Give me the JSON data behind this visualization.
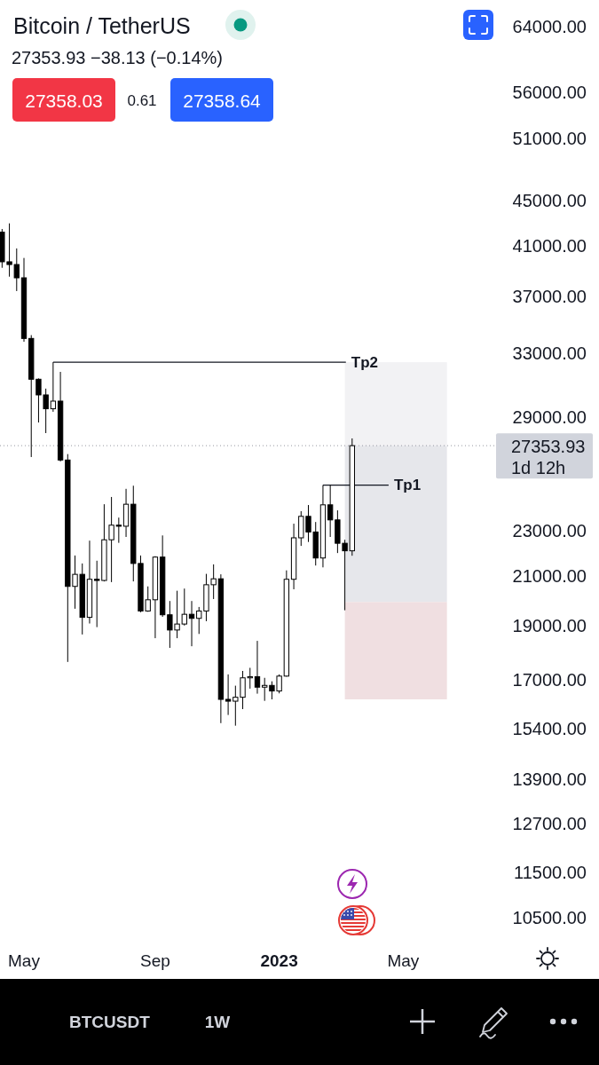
{
  "chart_data": {
    "type": "candlestick",
    "title": "Bitcoin / TetherUS",
    "subtitle": "27353.93 −38.13 (−0.14%)",
    "x": [
      "2022-04-11",
      "2022-04-18",
      "2022-04-25",
      "2022-05-02",
      "2022-05-09",
      "2022-05-16",
      "2022-05-23",
      "2022-05-30",
      "2022-06-06",
      "2022-06-13",
      "2022-06-20",
      "2022-06-27",
      "2022-07-04",
      "2022-07-11",
      "2022-07-18",
      "2022-07-25",
      "2022-08-01",
      "2022-08-08",
      "2022-08-15",
      "2022-08-22",
      "2022-08-29",
      "2022-09-05",
      "2022-09-12",
      "2022-09-19",
      "2022-09-26",
      "2022-10-03",
      "2022-10-10",
      "2022-10-17",
      "2022-10-24",
      "2022-10-31",
      "2022-11-07",
      "2022-11-14",
      "2022-11-21",
      "2022-11-28",
      "2022-12-05",
      "2022-12-12",
      "2022-12-19",
      "2022-12-26",
      "2023-01-02",
      "2023-01-09",
      "2023-01-16",
      "2023-01-23",
      "2023-01-30",
      "2023-02-06",
      "2023-02-13",
      "2023-02-20",
      "2023-02-27",
      "2023-03-06",
      "2023-03-13"
    ],
    "ohlc": [
      [
        42180,
        42450,
        39240,
        39720
      ],
      [
        39720,
        42940,
        38540,
        39500
      ],
      [
        39500,
        40810,
        37430,
        38450
      ],
      [
        38450,
        40030,
        33770,
        34000
      ],
      [
        34000,
        34230,
        26730,
        31300
      ],
      [
        31300,
        31350,
        28670,
        30320
      ],
      [
        30320,
        30710,
        28060,
        29480
      ],
      [
        29480,
        32400,
        29300,
        29940
      ],
      [
        29940,
        31770,
        26490,
        26570
      ],
      [
        26570,
        26890,
        17640,
        20560
      ],
      [
        20560,
        21890,
        19650,
        21070
      ],
      [
        21070,
        21540,
        18650,
        19310
      ],
      [
        19310,
        22560,
        19070,
        20860
      ],
      [
        20860,
        21660,
        18930,
        20810
      ],
      [
        20810,
        24290,
        20770,
        22600
      ],
      [
        22600,
        24650,
        20740,
        23280
      ],
      [
        23280,
        23640,
        22460,
        23230
      ],
      [
        23230,
        25060,
        22730,
        24290
      ],
      [
        24290,
        25220,
        20770,
        21540
      ],
      [
        21540,
        21890,
        19510,
        19560
      ],
      [
        19560,
        20560,
        19530,
        20010
      ],
      [
        20010,
        21860,
        18510,
        21820
      ],
      [
        21820,
        22800,
        19330,
        19410
      ],
      [
        19410,
        19960,
        18150,
        18820
      ],
      [
        18820,
        20380,
        18510,
        19050
      ],
      [
        19050,
        20470,
        18990,
        19430
      ],
      [
        19430,
        19960,
        18210,
        19270
      ],
      [
        19270,
        19720,
        18670,
        19560
      ],
      [
        19560,
        21090,
        19160,
        20630
      ],
      [
        20630,
        21500,
        20040,
        20880
      ],
      [
        20880,
        21070,
        15580,
        16350
      ],
      [
        16350,
        17200,
        15840,
        16290
      ],
      [
        16290,
        16810,
        15500,
        16420
      ],
      [
        16420,
        17320,
        16030,
        17080
      ],
      [
        17080,
        17430,
        16710,
        17120
      ],
      [
        17120,
        18410,
        16540,
        16760
      ],
      [
        16760,
        17080,
        16300,
        16820
      ],
      [
        16820,
        16960,
        16350,
        16630
      ],
      [
        16630,
        17200,
        16550,
        17140
      ],
      [
        17140,
        21240,
        17120,
        20860
      ],
      [
        20860,
        23350,
        20440,
        22690
      ],
      [
        22690,
        23950,
        22320,
        23700
      ],
      [
        23700,
        24250,
        22500,
        22960
      ],
      [
        22960,
        23430,
        21450,
        21780
      ],
      [
        21780,
        25250,
        21370,
        24260
      ],
      [
        24260,
        25250,
        22730,
        23530
      ],
      [
        23530,
        23990,
        22000,
        22440
      ],
      [
        22440,
        22600,
        19590,
        22100
      ],
      [
        22100,
        27760,
        21880,
        27353.93
      ]
    ],
    "colors": [
      "#000000",
      "#000000",
      "#000000",
      "#000000",
      "#000000",
      "#000000",
      "#000000",
      "#ffffff",
      "#000000",
      "#000000",
      "#ffffff",
      "#000000",
      "#ffffff",
      "#000000",
      "#ffffff",
      "#ffffff",
      "#000000",
      "#ffffff",
      "#000000",
      "#000000",
      "#ffffff",
      "#ffffff",
      "#000000",
      "#000000",
      "#ffffff",
      "#ffffff",
      "#000000",
      "#ffffff",
      "#ffffff",
      "#ffffff",
      "#000000",
      "#000000",
      "#ffffff",
      "#ffffff",
      "#ffffff",
      "#000000",
      "#ffffff",
      "#000000",
      "#ffffff",
      "#ffffff",
      "#ffffff",
      "#ffffff",
      "#000000",
      "#000000",
      "#ffffff",
      "#000000",
      "#000000",
      "#000000",
      "#ffffff"
    ],
    "xlim": [
      "2022-04-09",
      "2023-07-30"
    ],
    "xticks": [
      {
        "value": "2022-05-02",
        "label": "May"
      },
      {
        "value": "2022-09-05",
        "label": "Sep"
      },
      {
        "value": "2023-01-02",
        "label": "2023"
      },
      {
        "value": "2023-05-01",
        "label": "May"
      }
    ],
    "ylim": [
      10500,
      64000
    ],
    "yticks": [
      {
        "value": 64000,
        "label": "64000.00"
      },
      {
        "value": 56000,
        "label": "56000.00"
      },
      {
        "value": 51000,
        "label": "51000.00"
      },
      {
        "value": 45000,
        "label": "45000.00"
      },
      {
        "value": 41000,
        "label": "41000.00"
      },
      {
        "value": 37000,
        "label": "37000.00"
      },
      {
        "value": 33000,
        "label": "33000.00"
      },
      {
        "value": 29000,
        "label": "29000.00"
      },
      {
        "value": 23000,
        "label": "23000.00"
      },
      {
        "value": 21000,
        "label": "21000.00"
      },
      {
        "value": 19000,
        "label": "19000.00"
      },
      {
        "value": 17000,
        "label": "17000.00"
      },
      {
        "value": 15400,
        "label": "15400.00"
      },
      {
        "value": 13900,
        "label": "13900.00"
      },
      {
        "value": 12700,
        "label": "12700.00"
      },
      {
        "value": 11500,
        "label": "11500.00"
      },
      {
        "value": 10500,
        "label": "10500.00"
      }
    ],
    "log": true,
    "series": [
      {
        "type": "line",
        "name": "Tp2",
        "color": "#131722",
        "x": [
          "2022-05-30",
          "2023-03-07"
        ],
        "values": [
          32400,
          32400
        ]
      },
      {
        "type": "line",
        "name": "Tp1",
        "color": "#131722",
        "x": [
          "2023-02-13",
          "2023-04-17"
        ],
        "values": [
          25250,
          25250
        ]
      }
    ],
    "ref_lines": [
      {
        "axis": "y",
        "value": 27353.93,
        "label": "27353.93",
        "line_style": "dotted",
        "color": "#9598a1"
      }
    ],
    "bands": [
      {
        "axis": "y",
        "from": 27353.93,
        "to": 32400,
        "color": "#f2f2f4"
      },
      {
        "axis": "y",
        "from": 19920,
        "to": 27353.93,
        "color": "#e6e7eb"
      },
      {
        "axis": "y",
        "from": 16350,
        "to": 19920,
        "color": "#f0dfe1"
      }
    ],
    "annotations": [
      "27358.03",
      "0.61",
      "27358.64",
      "1d 12h",
      "BTCUSDT",
      "1W"
    ]
  }
}
